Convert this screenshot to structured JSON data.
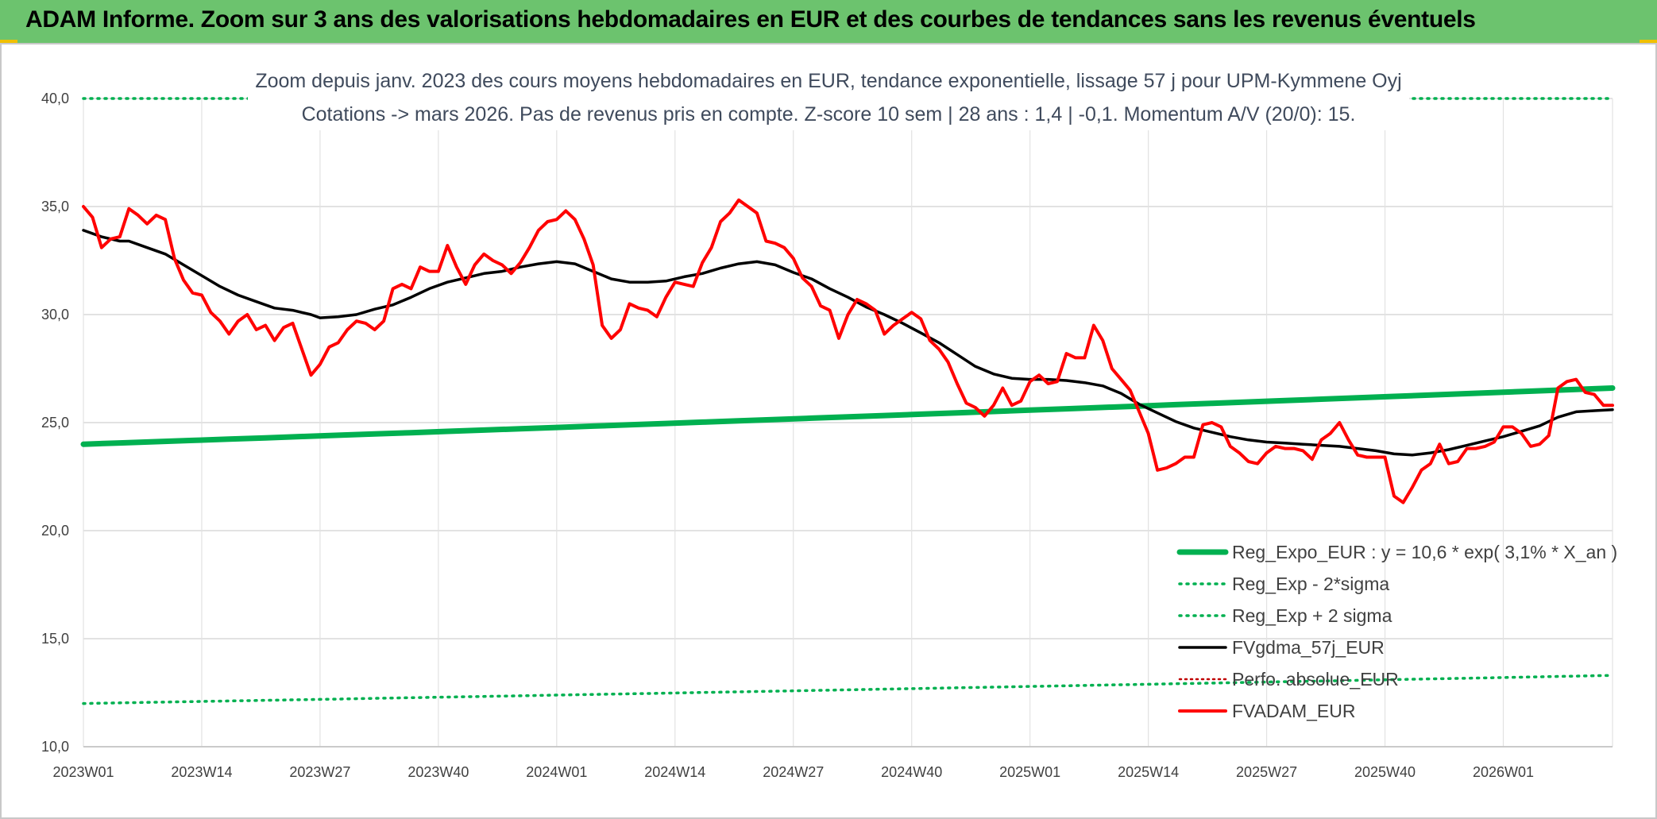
{
  "banner": {
    "title": "ADAM Informe. Zoom sur 3 ans des valorisations hebdomadaires en EUR et des courbes de tendances sans les revenus éventuels"
  },
  "chart_data": {
    "type": "line",
    "title": "",
    "subtitle_line1": "Zoom depuis janv. 2023 des cours moyens hebdomadaires en EUR, tendance exponentielle, lissage 57 j pour UPM-Kymmene Oyj",
    "subtitle_line2": "Cotations -> mars 2026. Pas de revenus pris en compte. Z-score 10 sem | 28 ans : 1,4 | -0,1. Momentum A/V (20/0): 15.",
    "xlabel": "",
    "ylabel": "",
    "ylim": [
      10,
      40
    ],
    "yticks": [
      "10,0",
      "15,0",
      "20,0",
      "25,0",
      "30,0",
      "35,0",
      "40,0"
    ],
    "xlim": [
      0,
      168
    ],
    "xticks": [
      {
        "index": 0,
        "label": "2023W01"
      },
      {
        "index": 13,
        "label": "2023W14"
      },
      {
        "index": 26,
        "label": "2023W27"
      },
      {
        "index": 39,
        "label": "2023W40"
      },
      {
        "index": 52,
        "label": "2024W01"
      },
      {
        "index": 65,
        "label": "2024W14"
      },
      {
        "index": 78,
        "label": "2024W27"
      },
      {
        "index": 91,
        "label": "2024W40"
      },
      {
        "index": 104,
        "label": "2025W01"
      },
      {
        "index": 117,
        "label": "2025W14"
      },
      {
        "index": 130,
        "label": "2025W27"
      },
      {
        "index": 143,
        "label": "2025W40"
      },
      {
        "index": 156,
        "label": "2026W01"
      }
    ],
    "grid": true,
    "legend_position": "bottom-right",
    "series": [
      {
        "name": "Reg_Expo_EUR : y = 10,6 * exp( 3,1% *  X_an )",
        "color": "#00b050",
        "style": "solid-thick",
        "start": 24.0,
        "end": 26.6
      },
      {
        "name": "Reg_Exp - 2*sigma",
        "color": "#00b050",
        "style": "dotted",
        "start": 12.0,
        "end": 13.3
      },
      {
        "name": "Reg_Exp + 2 sigma",
        "color": "#00b050",
        "style": "dotted",
        "start": 40.0,
        "end": 40.0
      },
      {
        "name": "FVgdma_57j_EUR",
        "color": "#000000",
        "style": "solid",
        "points": [
          [
            0,
            33.9
          ],
          [
            2,
            33.6
          ],
          [
            4,
            33.4
          ],
          [
            5,
            33.4
          ],
          [
            7,
            33.1
          ],
          [
            9,
            32.8
          ],
          [
            11,
            32.3
          ],
          [
            13,
            31.8
          ],
          [
            15,
            31.3
          ],
          [
            17,
            30.9
          ],
          [
            19,
            30.6
          ],
          [
            21,
            30.3
          ],
          [
            23,
            30.2
          ],
          [
            25,
            30.0
          ],
          [
            26,
            29.85
          ],
          [
            28,
            29.9
          ],
          [
            30,
            30.0
          ],
          [
            32,
            30.25
          ],
          [
            34,
            30.45
          ],
          [
            36,
            30.8
          ],
          [
            38,
            31.2
          ],
          [
            40,
            31.5
          ],
          [
            42,
            31.7
          ],
          [
            44,
            31.9
          ],
          [
            46,
            32.0
          ],
          [
            48,
            32.2
          ],
          [
            50,
            32.35
          ],
          [
            52,
            32.45
          ],
          [
            54,
            32.35
          ],
          [
            56,
            32.0
          ],
          [
            58,
            31.65
          ],
          [
            60,
            31.5
          ],
          [
            62,
            31.5
          ],
          [
            64,
            31.55
          ],
          [
            66,
            31.75
          ],
          [
            68,
            31.9
          ],
          [
            70,
            32.15
          ],
          [
            72,
            32.35
          ],
          [
            74,
            32.45
          ],
          [
            76,
            32.3
          ],
          [
            78,
            31.95
          ],
          [
            80,
            31.65
          ],
          [
            82,
            31.2
          ],
          [
            84,
            30.8
          ],
          [
            86,
            30.35
          ],
          [
            88,
            30.0
          ],
          [
            90,
            29.6
          ],
          [
            92,
            29.15
          ],
          [
            94,
            28.7
          ],
          [
            96,
            28.15
          ],
          [
            98,
            27.6
          ],
          [
            100,
            27.25
          ],
          [
            102,
            27.05
          ],
          [
            104,
            27.0
          ],
          [
            106,
            27.0
          ],
          [
            108,
            26.95
          ],
          [
            110,
            26.85
          ],
          [
            112,
            26.7
          ],
          [
            114,
            26.35
          ],
          [
            116,
            25.85
          ],
          [
            118,
            25.45
          ],
          [
            120,
            25.05
          ],
          [
            122,
            24.75
          ],
          [
            124,
            24.55
          ],
          [
            126,
            24.35
          ],
          [
            128,
            24.2
          ],
          [
            130,
            24.1
          ],
          [
            132,
            24.05
          ],
          [
            134,
            24.0
          ],
          [
            136,
            23.95
          ],
          [
            138,
            23.9
          ],
          [
            140,
            23.8
          ],
          [
            142,
            23.7
          ],
          [
            144,
            23.55
          ],
          [
            146,
            23.5
          ],
          [
            148,
            23.6
          ],
          [
            150,
            23.75
          ],
          [
            152,
            23.95
          ],
          [
            154,
            24.15
          ],
          [
            156,
            24.35
          ],
          [
            158,
            24.6
          ],
          [
            160,
            24.85
          ],
          [
            162,
            25.25
          ],
          [
            164,
            25.5
          ],
          [
            166,
            25.55
          ],
          [
            168,
            25.6
          ]
        ]
      },
      {
        "name": "Perfo. absolue_EUR",
        "color": "#c00000",
        "style": "dotted-thin"
      },
      {
        "name": "FVADAM_EUR",
        "color": "#ff0000",
        "style": "solid-thick",
        "points": [
          [
            0,
            35.0
          ],
          [
            1,
            34.5
          ],
          [
            2,
            33.1
          ],
          [
            3,
            33.5
          ],
          [
            4,
            33.6
          ],
          [
            5,
            34.9
          ],
          [
            6,
            34.6
          ],
          [
            7,
            34.2
          ],
          [
            8,
            34.6
          ],
          [
            9,
            34.4
          ],
          [
            10,
            32.6
          ],
          [
            11,
            31.6
          ],
          [
            12,
            31.0
          ],
          [
            13,
            30.9
          ],
          [
            14,
            30.1
          ],
          [
            15,
            29.7
          ],
          [
            16,
            29.1
          ],
          [
            17,
            29.7
          ],
          [
            18,
            30.0
          ],
          [
            19,
            29.3
          ],
          [
            20,
            29.5
          ],
          [
            21,
            28.8
          ],
          [
            22,
            29.4
          ],
          [
            23,
            29.6
          ],
          [
            24,
            28.4
          ],
          [
            25,
            27.2
          ],
          [
            26,
            27.7
          ],
          [
            27,
            28.5
          ],
          [
            28,
            28.7
          ],
          [
            29,
            29.3
          ],
          [
            30,
            29.7
          ],
          [
            31,
            29.6
          ],
          [
            32,
            29.3
          ],
          [
            33,
            29.7
          ],
          [
            34,
            31.2
          ],
          [
            35,
            31.4
          ],
          [
            36,
            31.2
          ],
          [
            37,
            32.2
          ],
          [
            38,
            32.0
          ],
          [
            39,
            32.0
          ],
          [
            40,
            33.2
          ],
          [
            41,
            32.2
          ],
          [
            42,
            31.4
          ],
          [
            43,
            32.3
          ],
          [
            44,
            32.8
          ],
          [
            45,
            32.5
          ],
          [
            46,
            32.3
          ],
          [
            47,
            31.9
          ],
          [
            48,
            32.4
          ],
          [
            49,
            33.1
          ],
          [
            50,
            33.9
          ],
          [
            51,
            34.3
          ],
          [
            52,
            34.4
          ],
          [
            53,
            34.8
          ],
          [
            54,
            34.4
          ],
          [
            55,
            33.5
          ],
          [
            56,
            32.3
          ],
          [
            57,
            29.5
          ],
          [
            58,
            28.9
          ],
          [
            59,
            29.3
          ],
          [
            60,
            30.5
          ],
          [
            61,
            30.3
          ],
          [
            62,
            30.2
          ],
          [
            63,
            29.9
          ],
          [
            64,
            30.8
          ],
          [
            65,
            31.5
          ],
          [
            66,
            31.4
          ],
          [
            67,
            31.3
          ],
          [
            68,
            32.4
          ],
          [
            69,
            33.1
          ],
          [
            70,
            34.3
          ],
          [
            71,
            34.7
          ],
          [
            72,
            35.3
          ],
          [
            73,
            35.0
          ],
          [
            74,
            34.7
          ],
          [
            75,
            33.4
          ],
          [
            76,
            33.3
          ],
          [
            77,
            33.1
          ],
          [
            78,
            32.6
          ],
          [
            79,
            31.7
          ],
          [
            80,
            31.3
          ],
          [
            81,
            30.4
          ],
          [
            82,
            30.2
          ],
          [
            83,
            28.9
          ],
          [
            84,
            30.0
          ],
          [
            85,
            30.7
          ],
          [
            86,
            30.5
          ],
          [
            87,
            30.2
          ],
          [
            88,
            29.1
          ],
          [
            89,
            29.5
          ],
          [
            90,
            29.8
          ],
          [
            91,
            30.1
          ],
          [
            92,
            29.8
          ],
          [
            93,
            28.8
          ],
          [
            94,
            28.4
          ],
          [
            95,
            27.8
          ],
          [
            96,
            26.8
          ],
          [
            97,
            25.9
          ],
          [
            98,
            25.7
          ],
          [
            99,
            25.3
          ],
          [
            100,
            25.8
          ],
          [
            101,
            26.6
          ],
          [
            102,
            25.8
          ],
          [
            103,
            26.0
          ],
          [
            104,
            26.9
          ],
          [
            105,
            27.2
          ],
          [
            106,
            26.8
          ],
          [
            107,
            26.9
          ],
          [
            108,
            28.2
          ],
          [
            109,
            28.0
          ],
          [
            110,
            28.0
          ],
          [
            111,
            29.5
          ],
          [
            112,
            28.8
          ],
          [
            113,
            27.5
          ],
          [
            114,
            27.0
          ],
          [
            115,
            26.5
          ],
          [
            116,
            25.5
          ],
          [
            117,
            24.5
          ],
          [
            118,
            22.8
          ],
          [
            119,
            22.9
          ],
          [
            120,
            23.1
          ],
          [
            121,
            23.4
          ],
          [
            122,
            23.4
          ],
          [
            123,
            24.9
          ],
          [
            124,
            25.0
          ],
          [
            125,
            24.8
          ],
          [
            126,
            23.9
          ],
          [
            127,
            23.6
          ],
          [
            128,
            23.2
          ],
          [
            129,
            23.1
          ],
          [
            130,
            23.6
          ],
          [
            131,
            23.9
          ],
          [
            132,
            23.8
          ],
          [
            133,
            23.8
          ],
          [
            134,
            23.7
          ],
          [
            135,
            23.3
          ],
          [
            136,
            24.2
          ],
          [
            137,
            24.5
          ],
          [
            138,
            25.0
          ],
          [
            139,
            24.2
          ],
          [
            140,
            23.5
          ],
          [
            141,
            23.4
          ],
          [
            142,
            23.4
          ],
          [
            143,
            23.4
          ],
          [
            144,
            21.6
          ],
          [
            145,
            21.3
          ],
          [
            146,
            22.0
          ],
          [
            147,
            22.8
          ],
          [
            148,
            23.1
          ],
          [
            149,
            24.0
          ],
          [
            150,
            23.1
          ],
          [
            151,
            23.2
          ],
          [
            152,
            23.8
          ],
          [
            153,
            23.8
          ],
          [
            154,
            23.9
          ],
          [
            155,
            24.1
          ],
          [
            156,
            24.8
          ],
          [
            157,
            24.8
          ],
          [
            158,
            24.5
          ],
          [
            159,
            23.9
          ],
          [
            160,
            24.0
          ],
          [
            161,
            24.4
          ],
          [
            162,
            26.6
          ],
          [
            163,
            26.9
          ],
          [
            164,
            27.0
          ],
          [
            165,
            26.4
          ],
          [
            166,
            26.3
          ],
          [
            167,
            25.8
          ],
          [
            168,
            25.8
          ]
        ]
      }
    ]
  }
}
